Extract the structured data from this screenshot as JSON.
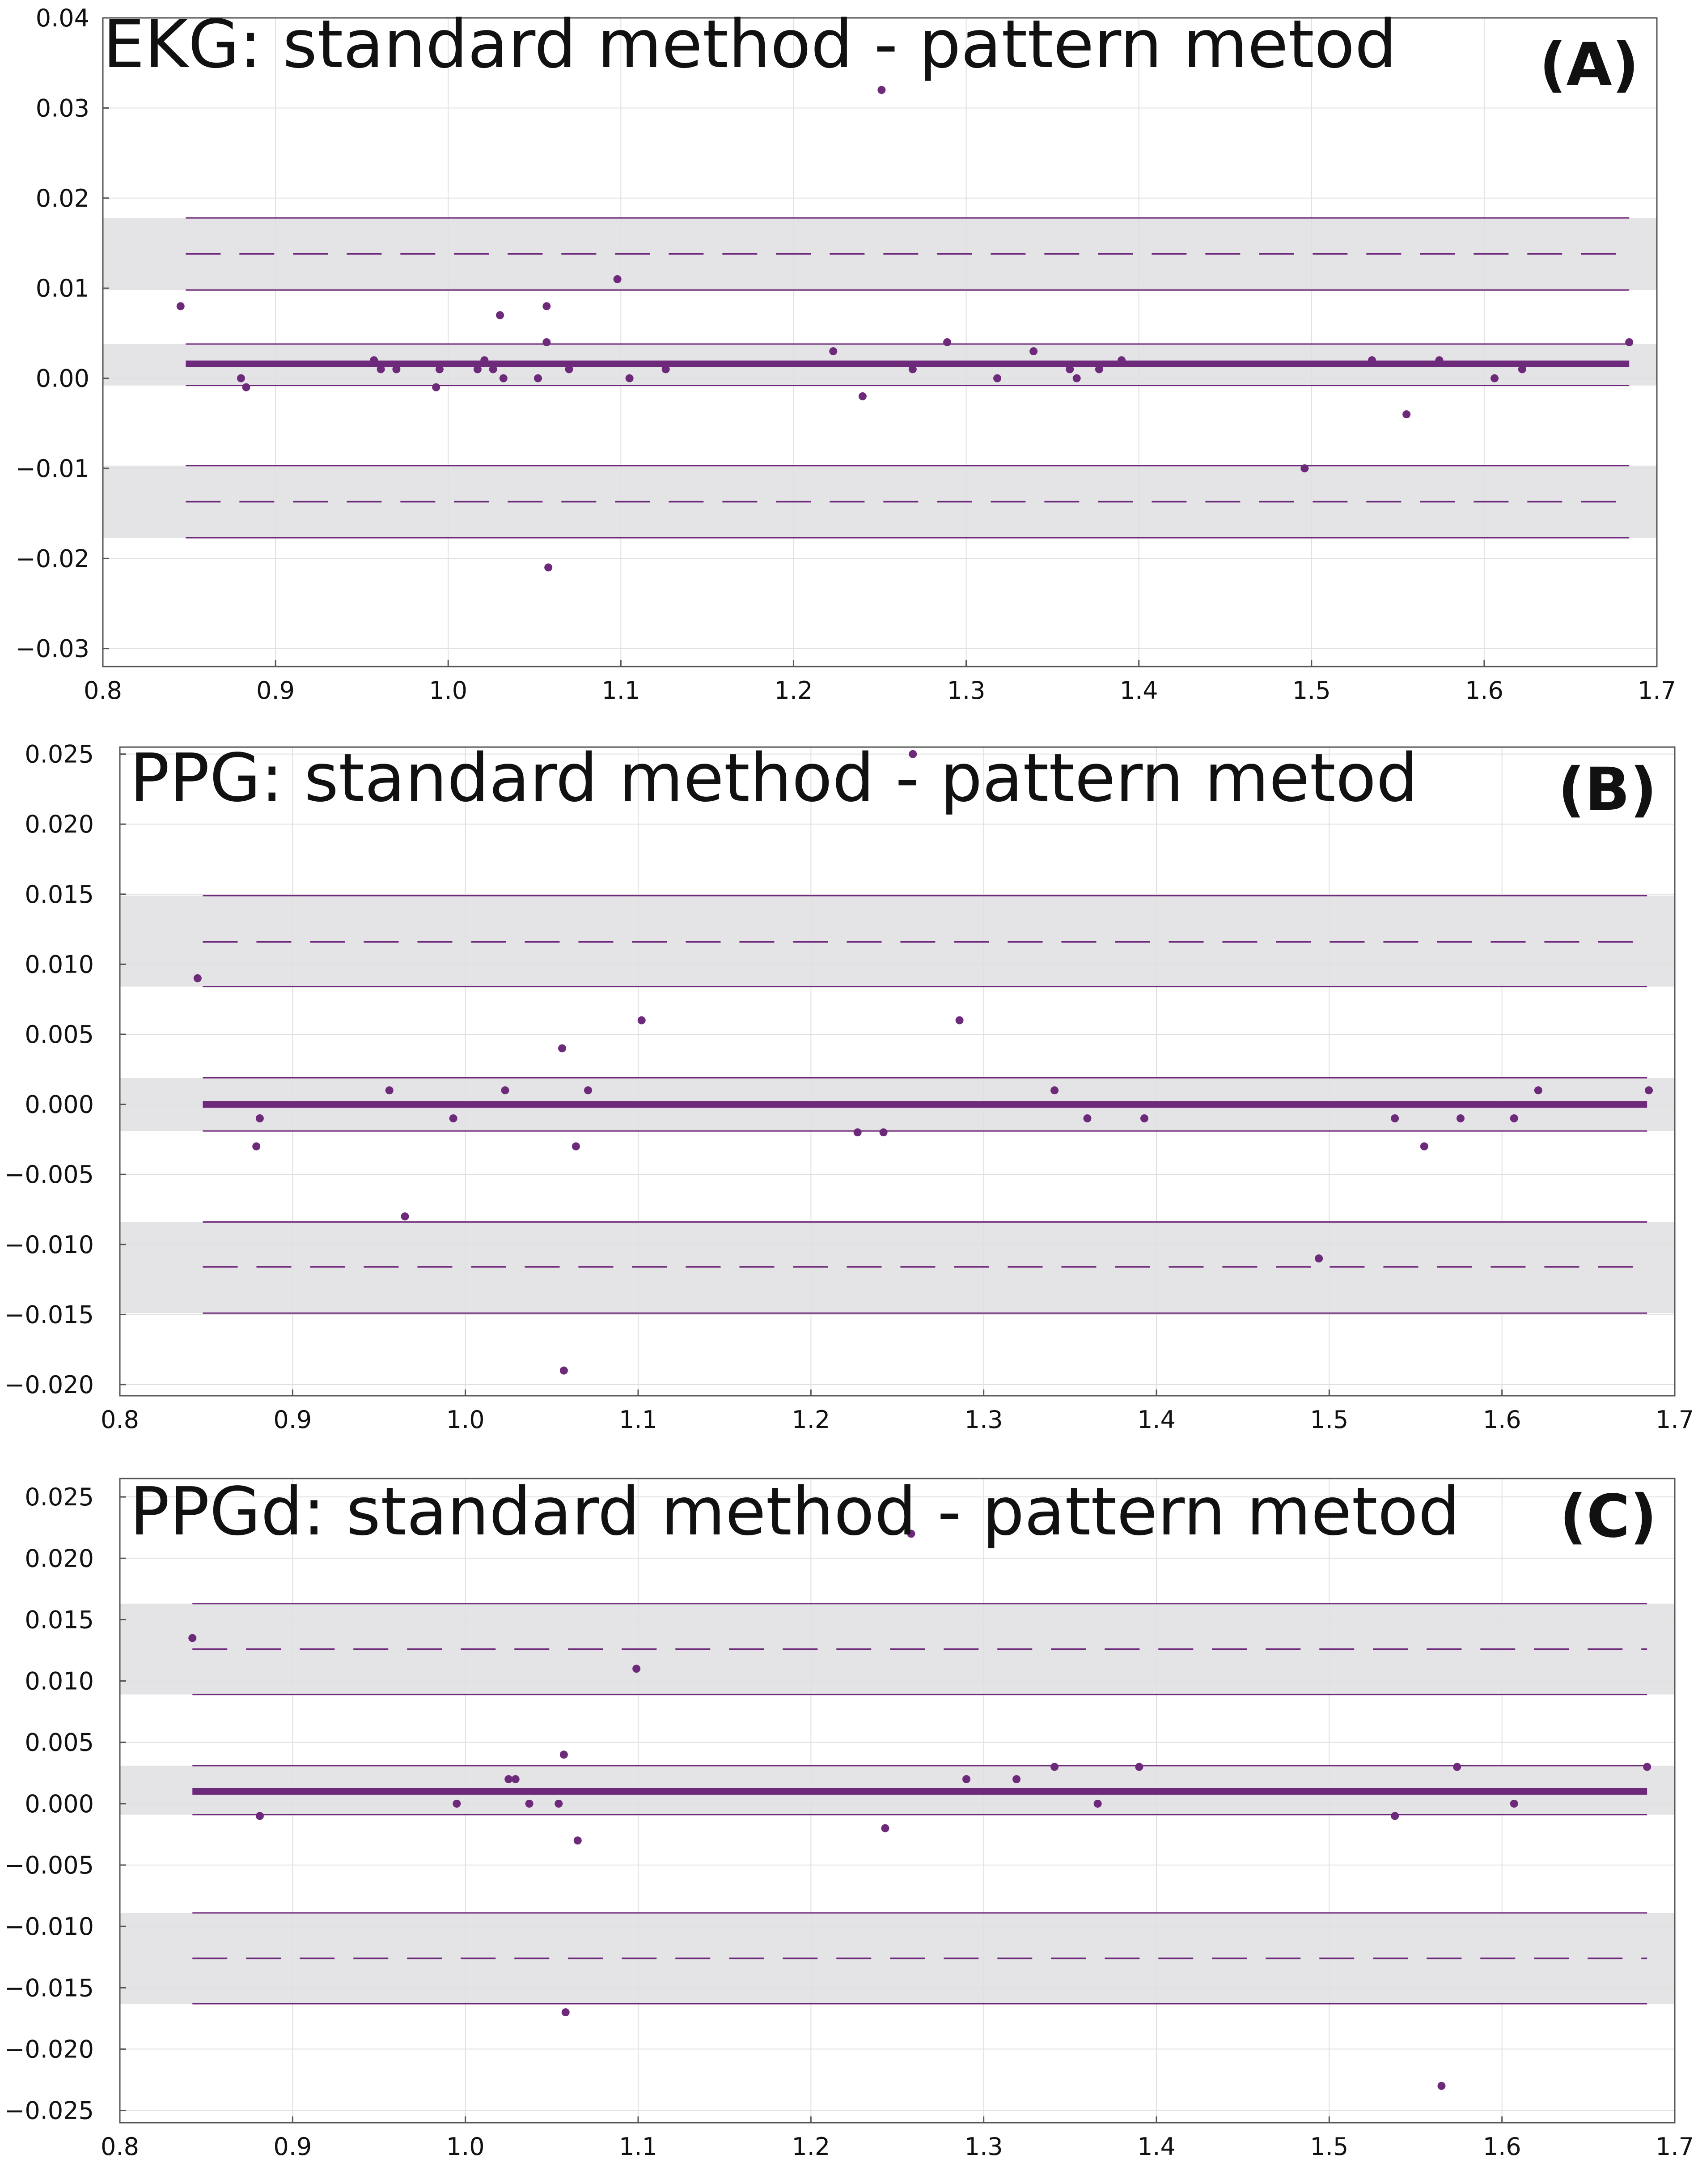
{
  "colors": {
    "series": "#6e2a7a",
    "band": "#e4e4e6",
    "grid": "#e0e0e0",
    "axis": "#555555",
    "text": "#111111"
  },
  "chart_data": [
    {
      "type": "scatter",
      "panel_label": "(A)",
      "title": "EKG: standard method - pattern metod",
      "xlabel": "",
      "ylabel": "",
      "xlim": [
        0.8,
        1.7
      ],
      "ylim": [
        -0.032,
        0.04
      ],
      "x_ticks": [
        0.8,
        0.9,
        1.0,
        1.1,
        1.2,
        1.3,
        1.4,
        1.5,
        1.6,
        1.7
      ],
      "x_tick_labels": [
        "0.8",
        "0.9",
        "1.0",
        "1.1",
        "1.2",
        "1.3",
        "1.4",
        "1.5",
        "1.6",
        "1.7"
      ],
      "y_ticks": [
        0.04,
        0.03,
        0.02,
        0.01,
        0.0,
        -0.01,
        -0.02,
        -0.03
      ],
      "y_tick_labels": [
        "0.04",
        "0.03",
        "0.02",
        "0.01",
        "0.00",
        "−0.01",
        "−0.02",
        "−0.03"
      ],
      "grid": true,
      "line_x_range": [
        0.848,
        1.684
      ],
      "mean": 0.0016,
      "mean_ci": [
        -0.0008,
        0.0038
      ],
      "upper_loa": 0.0138,
      "upper_loa_ci": [
        0.0098,
        0.0178
      ],
      "lower_loa": -0.0137,
      "lower_loa_ci": [
        -0.0177,
        -0.0097
      ],
      "points": [
        [
          0.845,
          0.008
        ],
        [
          0.88,
          0.0
        ],
        [
          0.883,
          -0.001
        ],
        [
          0.957,
          0.002
        ],
        [
          0.961,
          0.001
        ],
        [
          0.97,
          0.001
        ],
        [
          0.993,
          -0.001
        ],
        [
          0.995,
          0.001
        ],
        [
          1.017,
          0.001
        ],
        [
          1.021,
          0.002
        ],
        [
          1.026,
          0.001
        ],
        [
          1.03,
          0.007
        ],
        [
          1.032,
          0.0
        ],
        [
          1.052,
          0.0
        ],
        [
          1.057,
          0.004
        ],
        [
          1.057,
          0.008
        ],
        [
          1.058,
          -0.021
        ],
        [
          1.07,
          0.001
        ],
        [
          1.098,
          0.011
        ],
        [
          1.105,
          0.0
        ],
        [
          1.126,
          0.001
        ],
        [
          1.223,
          0.003
        ],
        [
          1.24,
          -0.002
        ],
        [
          1.251,
          0.032
        ],
        [
          1.269,
          0.001
        ],
        [
          1.289,
          0.004
        ],
        [
          1.318,
          0.0
        ],
        [
          1.339,
          0.003
        ],
        [
          1.36,
          0.001
        ],
        [
          1.364,
          0.0
        ],
        [
          1.377,
          0.001
        ],
        [
          1.39,
          0.002
        ],
        [
          1.496,
          -0.01
        ],
        [
          1.535,
          0.002
        ],
        [
          1.555,
          -0.004
        ],
        [
          1.574,
          0.002
        ],
        [
          1.606,
          0.0
        ],
        [
          1.622,
          0.001
        ],
        [
          1.684,
          0.004
        ]
      ]
    },
    {
      "type": "scatter",
      "panel_label": "(B)",
      "title": "PPG: standard method - pattern metod",
      "xlabel": "",
      "ylabel": "",
      "xlim": [
        0.8,
        1.7
      ],
      "ylim": [
        -0.0208,
        0.0255
      ],
      "x_ticks": [
        0.8,
        0.9,
        1.0,
        1.1,
        1.2,
        1.3,
        1.4,
        1.5,
        1.6,
        1.7
      ],
      "x_tick_labels": [
        "0.8",
        "0.9",
        "1.0",
        "1.1",
        "1.2",
        "1.3",
        "1.4",
        "1.5",
        "1.6",
        "1.7"
      ],
      "y_ticks": [
        0.025,
        0.02,
        0.015,
        0.01,
        0.005,
        0.0,
        -0.005,
        -0.01,
        -0.015,
        -0.02
      ],
      "y_tick_labels": [
        "0.025",
        "0.020",
        "0.015",
        "0.010",
        "0.005",
        "0.000",
        "−0.005",
        "−0.010",
        "−0.015",
        "−0.020"
      ],
      "grid": true,
      "line_x_range": [
        0.848,
        1.684
      ],
      "mean": 0.0,
      "mean_ci": [
        -0.0019,
        0.0019
      ],
      "upper_loa": 0.0116,
      "upper_loa_ci": [
        0.0084,
        0.0149
      ],
      "lower_loa": -0.0116,
      "lower_loa_ci": [
        -0.0149,
        -0.0084
      ],
      "points": [
        [
          0.845,
          0.009
        ],
        [
          0.879,
          -0.003
        ],
        [
          0.881,
          -0.001
        ],
        [
          0.956,
          0.001
        ],
        [
          0.965,
          -0.008
        ],
        [
          0.993,
          -0.001
        ],
        [
          1.023,
          0.001
        ],
        [
          1.056,
          0.004
        ],
        [
          1.057,
          -0.019
        ],
        [
          1.064,
          -0.003
        ],
        [
          1.071,
          0.001
        ],
        [
          1.102,
          0.006
        ],
        [
          1.227,
          -0.002
        ],
        [
          1.242,
          -0.002
        ],
        [
          1.259,
          0.025
        ],
        [
          1.286,
          0.006
        ],
        [
          1.341,
          0.001
        ],
        [
          1.36,
          -0.001
        ],
        [
          1.393,
          -0.001
        ],
        [
          1.494,
          -0.011
        ],
        [
          1.538,
          -0.001
        ],
        [
          1.555,
          -0.003
        ],
        [
          1.576,
          -0.001
        ],
        [
          1.607,
          -0.001
        ],
        [
          1.621,
          0.001
        ],
        [
          1.685,
          0.001
        ]
      ]
    },
    {
      "type": "scatter",
      "panel_label": "(C)",
      "title": "PPGd: standard method - pattern metod",
      "xlabel": "",
      "ylabel": "",
      "xlim": [
        0.8,
        1.7
      ],
      "ylim": [
        -0.026,
        0.0265
      ],
      "x_ticks": [
        0.8,
        0.9,
        1.0,
        1.1,
        1.2,
        1.3,
        1.4,
        1.5,
        1.6,
        1.7
      ],
      "x_tick_labels": [
        "0.8",
        "0.9",
        "1.0",
        "1.1",
        "1.2",
        "1.3",
        "1.4",
        "1.5",
        "1.6",
        "1.7"
      ],
      "y_ticks": [
        0.025,
        0.02,
        0.015,
        0.01,
        0.005,
        0.0,
        -0.005,
        -0.01,
        -0.015,
        -0.02,
        -0.025
      ],
      "y_tick_labels": [
        "0.025",
        "0.020",
        "0.015",
        "0.010",
        "0.005",
        "0.000",
        "−0.005",
        "−0.010",
        "−0.015",
        "−0.020",
        "−0.025"
      ],
      "grid": true,
      "line_x_range": [
        0.842,
        1.684
      ],
      "mean": 0.001,
      "mean_ci": [
        -0.0009,
        0.0031
      ],
      "upper_loa": 0.0126,
      "upper_loa_ci": [
        0.0089,
        0.0163
      ],
      "lower_loa": -0.0126,
      "lower_loa_ci": [
        -0.0163,
        -0.0089
      ],
      "points": [
        [
          0.842,
          0.0135
        ],
        [
          0.881,
          -0.001
        ],
        [
          0.995,
          0.0
        ],
        [
          1.025,
          0.002
        ],
        [
          1.029,
          0.002
        ],
        [
          1.037,
          0.0
        ],
        [
          1.054,
          0.0
        ],
        [
          1.057,
          0.004
        ],
        [
          1.058,
          -0.017
        ],
        [
          1.065,
          -0.003
        ],
        [
          1.099,
          0.011
        ],
        [
          1.243,
          -0.002
        ],
        [
          1.258,
          0.022
        ],
        [
          1.29,
          0.002
        ],
        [
          1.319,
          0.002
        ],
        [
          1.341,
          0.003
        ],
        [
          1.366,
          0.0
        ],
        [
          1.39,
          0.003
        ],
        [
          1.538,
          -0.001
        ],
        [
          1.565,
          -0.023
        ],
        [
          1.574,
          0.003
        ],
        [
          1.607,
          0.0
        ],
        [
          1.684,
          0.003
        ]
      ]
    }
  ]
}
